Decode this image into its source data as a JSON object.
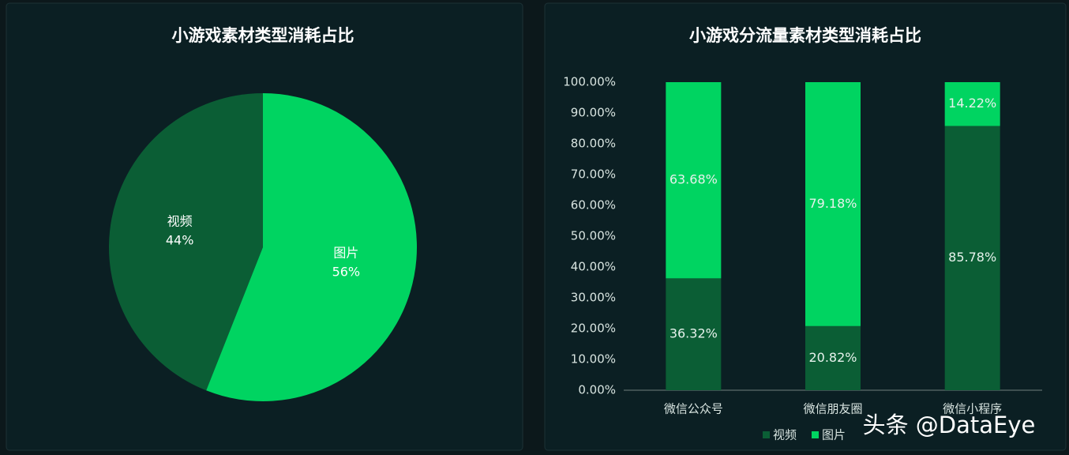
{
  "chart_data": [
    {
      "type": "pie",
      "title": "小游戏素材类型消耗占比",
      "categories": [
        "视频",
        "图片"
      ],
      "values": [
        44,
        56
      ],
      "value_labels": [
        "44%",
        "56%"
      ],
      "colors": [
        "#0b5e35",
        "#00d461"
      ]
    },
    {
      "type": "bar",
      "stacked": true,
      "title": "小游戏分流量素材类型消耗占比",
      "categories": [
        "微信公众号",
        "微信朋友圈",
        "微信小程序"
      ],
      "series": [
        {
          "name": "视频",
          "color": "#0b5e35",
          "values": [
            36.32,
            20.82,
            85.78
          ],
          "value_labels": [
            "36.32%",
            "20.82%",
            "85.78%"
          ]
        },
        {
          "name": "图片",
          "color": "#00d461",
          "values": [
            63.68,
            79.18,
            14.22
          ],
          "value_labels": [
            "63.68%",
            "79.18%",
            "14.22%"
          ]
        }
      ],
      "ylim": [
        0,
        100
      ],
      "yticks": [
        {
          "value": 0,
          "label": "0.00%"
        },
        {
          "value": 10,
          "label": "10.00%"
        },
        {
          "value": 20,
          "label": "20.00%"
        },
        {
          "value": 30,
          "label": "30.00%"
        },
        {
          "value": 40,
          "label": "40.00%"
        },
        {
          "value": 50,
          "label": "50.00%"
        },
        {
          "value": 60,
          "label": "60.00%"
        },
        {
          "value": 70,
          "label": "70.00%"
        },
        {
          "value": 80,
          "label": "80.00%"
        },
        {
          "value": 90,
          "label": "90.00%"
        },
        {
          "value": 100,
          "label": "100.00%"
        }
      ],
      "legend": "bottom"
    }
  ],
  "watermark": "头条 @DataEye"
}
